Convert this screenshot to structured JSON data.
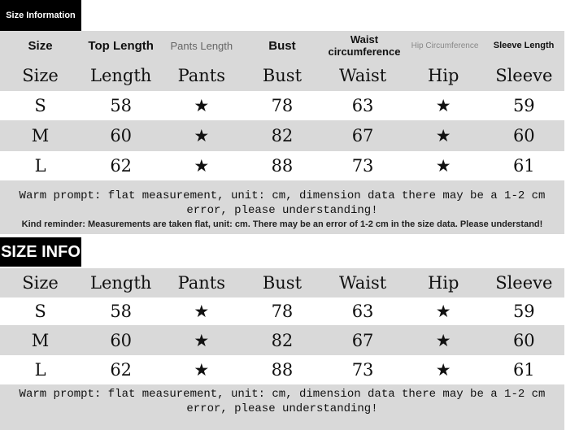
{
  "section1": {
    "tab_label": "Size Information",
    "headers_en": [
      "Size",
      "Top Length",
      "Pants Length",
      "Bust",
      "Waist circumference",
      "Hip Circumference",
      "Sleeve Length"
    ],
    "headers": [
      "Size",
      "Length",
      "Pants",
      "Bust",
      "Waist",
      "Hip",
      "Sleeve"
    ],
    "rows": [
      [
        "S",
        "58",
        "★",
        "78",
        "63",
        "★",
        "59"
      ],
      [
        "M",
        "60",
        "★",
        "82",
        "67",
        "★",
        "60"
      ],
      [
        "L",
        "62",
        "★",
        "88",
        "73",
        "★",
        "61"
      ]
    ],
    "warm_prompt": "Warm prompt: flat measurement, unit: cm, dimension data there may be a 1-2 cm error, please understanding!",
    "kind_reminder": "Kind reminder: Measurements are taken flat, unit: cm. There may be an error of 1-2 cm in the size data. Please understand!"
  },
  "section2": {
    "tab_label": "SIZE INFO",
    "headers": [
      "Size",
      "Length",
      "Pants",
      "Bust",
      "Waist",
      "Hip",
      "Sleeve"
    ],
    "rows": [
      [
        "S",
        "58",
        "★",
        "78",
        "63",
        "★",
        "59"
      ],
      [
        "M",
        "60",
        "★",
        "82",
        "67",
        "★",
        "60"
      ],
      [
        "L",
        "62",
        "★",
        "88",
        "73",
        "★",
        "61"
      ]
    ],
    "warm_prompt": "Warm prompt: flat measurement, unit: cm, dimension data there may be a 1-2 cm error, please understanding!"
  },
  "colors": {
    "band_grey": "#d9d9d9",
    "tab_black": "#000000"
  }
}
